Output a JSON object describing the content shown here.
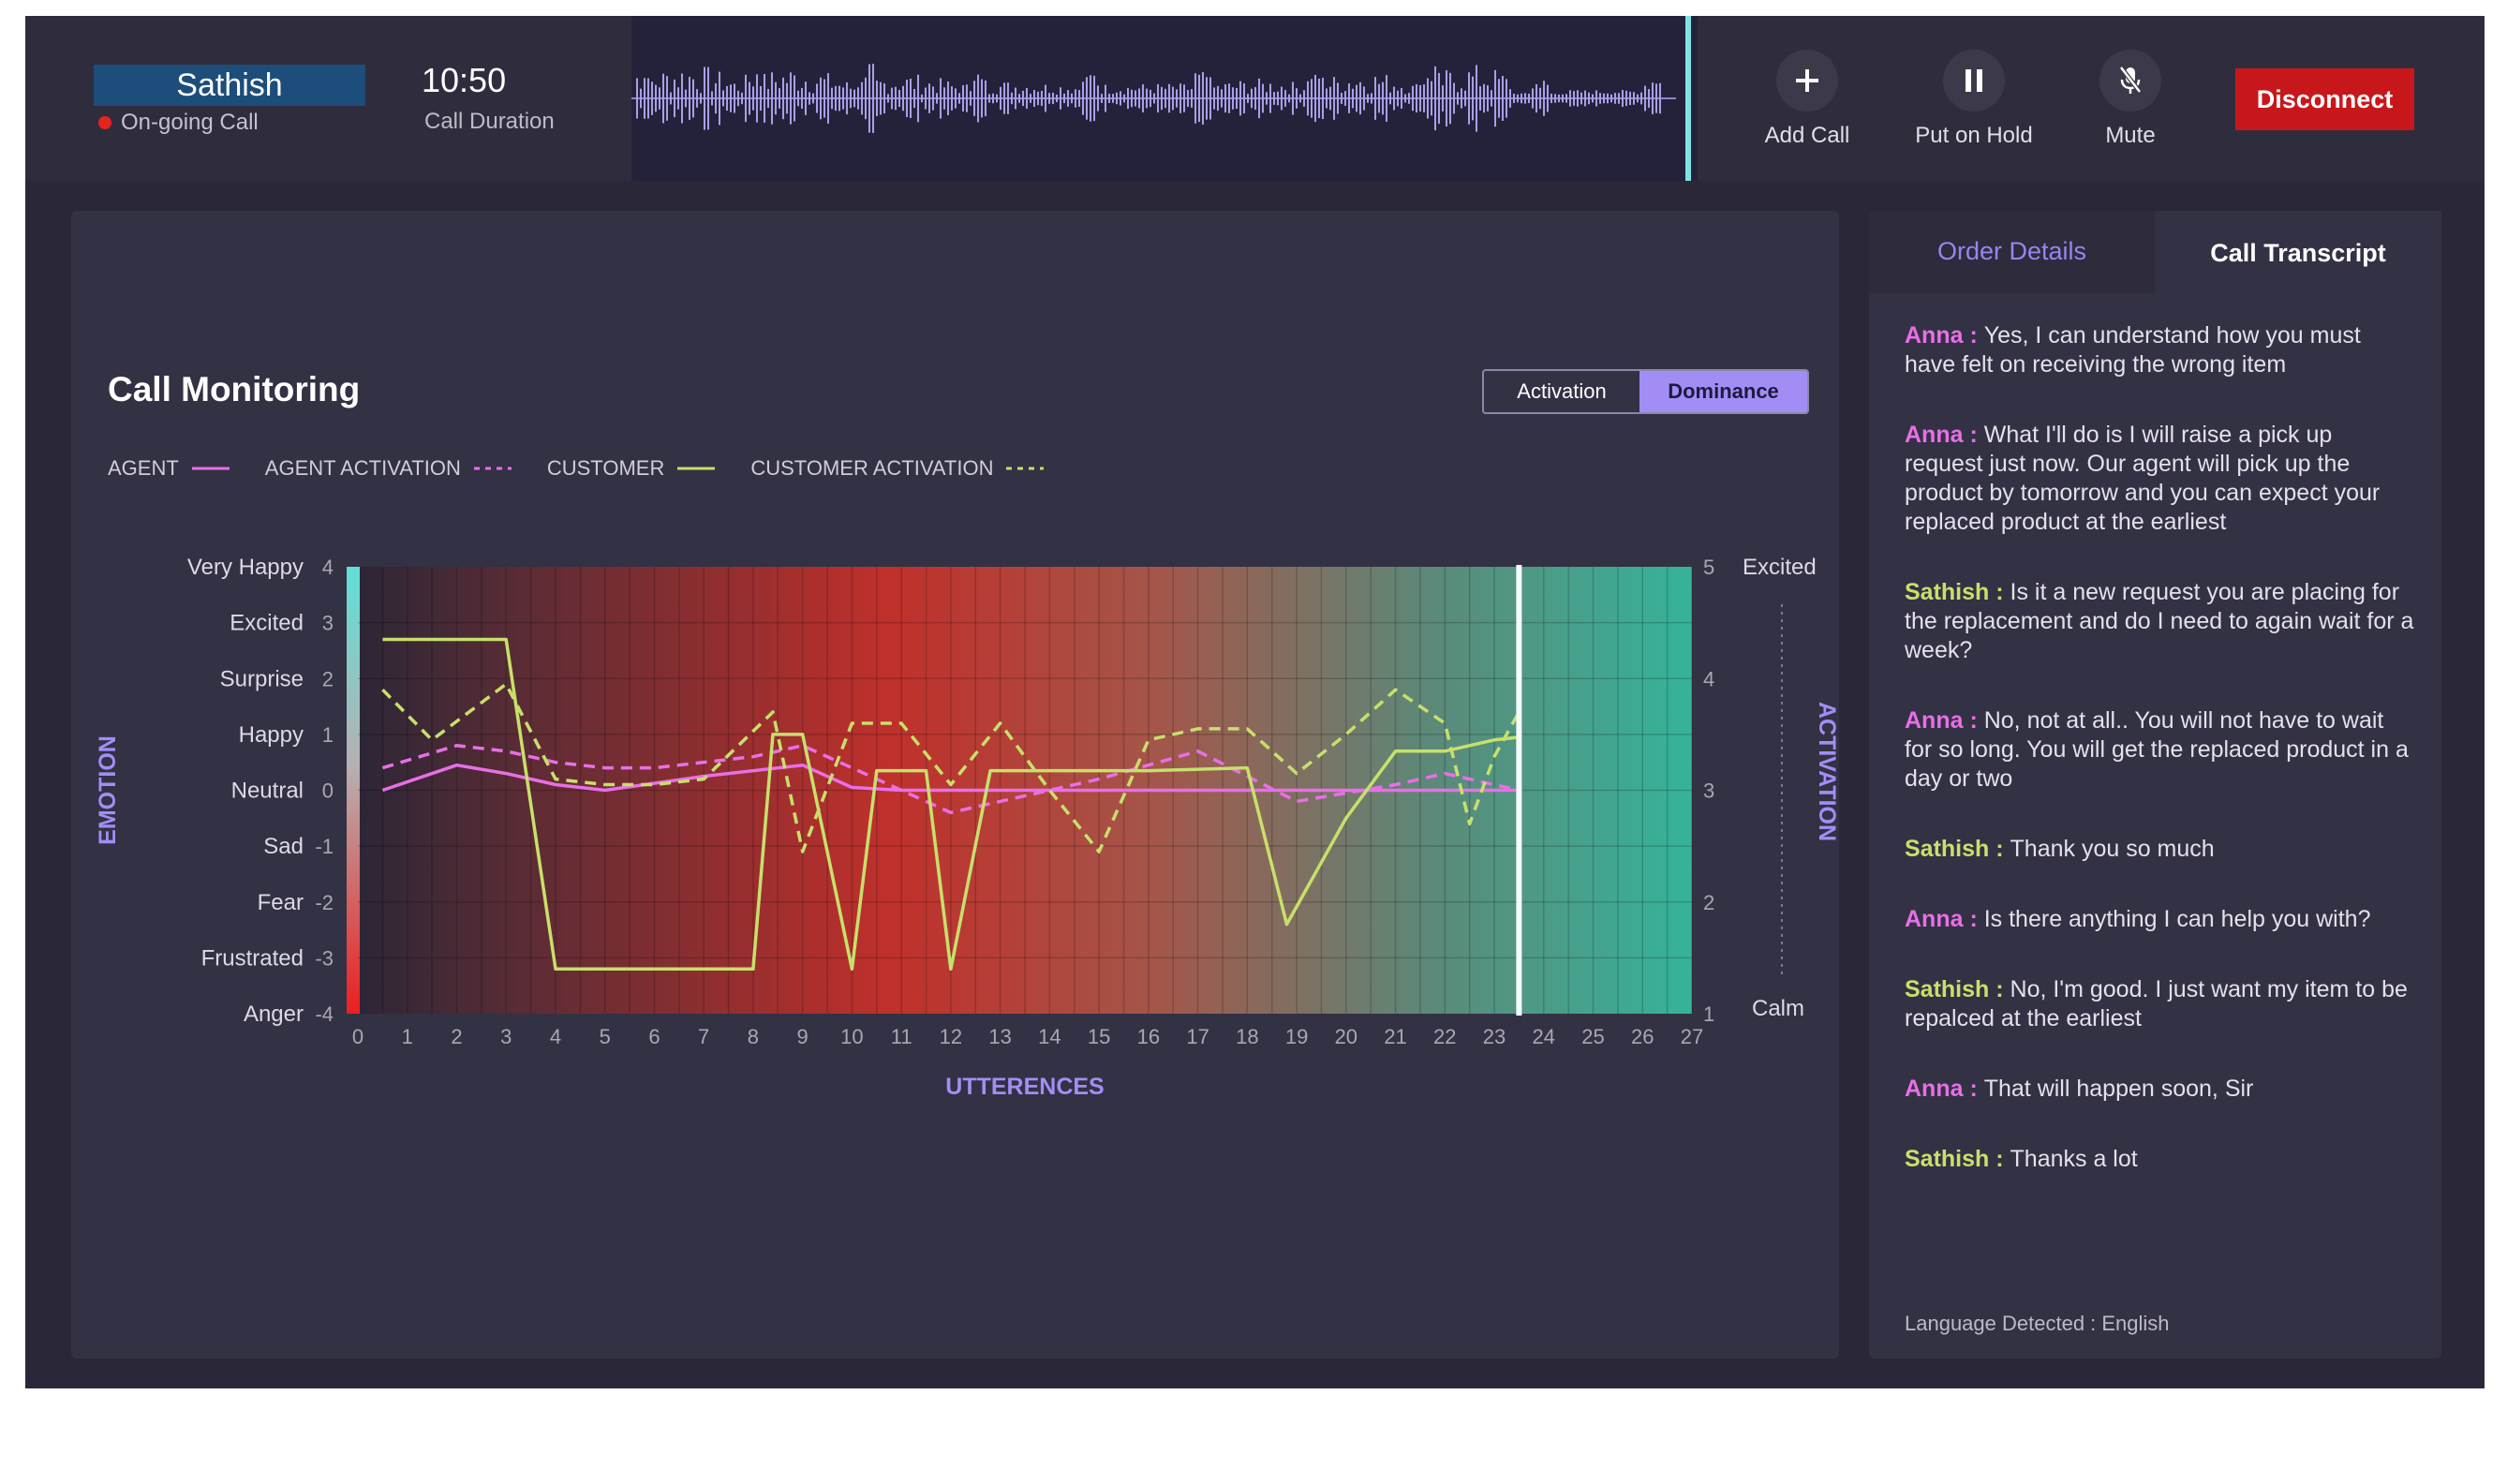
{
  "call": {
    "caller": "Sathish",
    "status": "On-going Call",
    "duration": "10:50",
    "duration_label": "Call Duration"
  },
  "controls": {
    "add_call": "Add Call",
    "hold": "Put on Hold",
    "mute": "Mute",
    "disconnect": "Disconnect"
  },
  "monitor": {
    "title": "Call Monitoring",
    "toggle": {
      "activation": "Activation",
      "dominance": "Dominance",
      "selected": "Dominance"
    },
    "legend": [
      "AGENT",
      "AGENT ACTIVATION",
      "CUSTOMER",
      "CUSTOMER ACTIVATION"
    ]
  },
  "chart_data": {
    "type": "line",
    "xlabel": "UTTERENCES",
    "ylabel": "EMOTION",
    "y2label": "ACTIVATION",
    "xlim": [
      0,
      27
    ],
    "ylim": [
      -4,
      4
    ],
    "y2lim": [
      1,
      5
    ],
    "x_ticks": [
      0,
      1,
      2,
      3,
      4,
      5,
      6,
      7,
      8,
      9,
      10,
      11,
      12,
      13,
      14,
      15,
      16,
      17,
      18,
      19,
      20,
      21,
      22,
      23,
      24,
      25,
      26,
      27
    ],
    "y_ticks": [
      {
        "value": 4,
        "label": "Very Happy"
      },
      {
        "value": 3,
        "label": "Excited"
      },
      {
        "value": 2,
        "label": "Surprise"
      },
      {
        "value": 1,
        "label": "Happy"
      },
      {
        "value": 0,
        "label": "Neutral"
      },
      {
        "value": -1,
        "label": "Sad"
      },
      {
        "value": -2,
        "label": "Fear"
      },
      {
        "value": -3,
        "label": "Frustrated"
      },
      {
        "value": -4,
        "label": "Anger"
      }
    ],
    "y2_ticks": [
      1,
      2,
      3,
      4,
      5
    ],
    "y2_top_label": "Excited",
    "y2_bottom_label": "Calm",
    "current_x": 23.5,
    "grid": true,
    "series": [
      {
        "name": "AGENT",
        "axis": "y",
        "color": "#e86fe6",
        "dash": false,
        "x": [
          0.5,
          2,
          3,
          4,
          5,
          7,
          9,
          10,
          11,
          12,
          13,
          15,
          17,
          19,
          21,
          23.5
        ],
        "y": [
          0,
          0.45,
          0.3,
          0.1,
          0,
          0.25,
          0.45,
          0.05,
          0,
          0,
          0,
          0,
          0,
          0,
          0,
          0
        ]
      },
      {
        "name": "AGENT ACTIVATION",
        "axis": "y2",
        "color": "#e86fe6",
        "dash": true,
        "x": [
          0.5,
          2,
          3,
          4,
          5,
          6,
          8,
          9,
          10,
          11,
          12,
          13,
          14,
          15,
          17,
          19,
          21,
          22,
          23.5
        ],
        "y": [
          3.2,
          3.4,
          3.35,
          3.25,
          3.2,
          3.2,
          3.3,
          3.4,
          3.2,
          3.0,
          2.8,
          2.9,
          3.0,
          3.1,
          3.35,
          2.9,
          3.05,
          3.15,
          3.0
        ]
      },
      {
        "name": "CUSTOMER",
        "axis": "y",
        "color": "#c7e06b",
        "dash": false,
        "x": [
          0.5,
          3,
          4,
          5,
          6,
          7,
          8,
          8.4,
          9,
          10,
          10.5,
          11,
          11.5,
          12,
          12.8,
          14,
          16,
          18,
          18.8,
          20,
          21,
          22,
          23,
          23.5
        ],
        "y": [
          2.7,
          2.7,
          -3.2,
          -3.2,
          -3.2,
          -3.2,
          -3.2,
          1,
          1,
          -3.2,
          0.35,
          0.35,
          0.35,
          -3.2,
          0.35,
          0.35,
          0.35,
          0.4,
          -2.4,
          -0.5,
          0.7,
          0.7,
          0.9,
          0.95
        ]
      },
      {
        "name": "CUSTOMER ACTIVATION",
        "axis": "y2",
        "color": "#c7e06b",
        "dash": true,
        "x": [
          0.5,
          1.5,
          3,
          4,
          5,
          6,
          7,
          8.4,
          9,
          10,
          11,
          12,
          13,
          14,
          15,
          16,
          17,
          18,
          19,
          20,
          21,
          22,
          22.5,
          23,
          23.5
        ],
        "y": [
          3.9,
          3.45,
          3.95,
          3.1,
          3.05,
          3.05,
          3.1,
          3.7,
          2.45,
          3.6,
          3.6,
          3.05,
          3.6,
          3.0,
          2.45,
          3.45,
          3.55,
          3.55,
          3.15,
          3.5,
          3.9,
          3.6,
          2.7,
          3.3,
          3.7
        ]
      }
    ]
  },
  "side": {
    "tab_order": "Order Details",
    "tab_transcript": "Call Transcript",
    "messages": [
      {
        "speaker": "Anna :",
        "text": "Yes, I can understand how you must have felt on receiving the wrong item"
      },
      {
        "speaker": "Anna :",
        "text": "What I'll do is I will raise a pick up request just now. Our agent will pick up the product by tomorrow and you can expect your replaced product at the earliest"
      },
      {
        "speaker": "Sathish :",
        "text": "Is it a new request you are placing for the replacement and do I need to again wait for a week?"
      },
      {
        "speaker": "Anna :",
        "text": "No, not at all.. You will not have to wait for so long. You will get the replaced product in a day or two"
      },
      {
        "speaker": "Sathish :",
        "text": "Thank you so much"
      },
      {
        "speaker": "Anna :",
        "text": "Is there anything I can help you with?"
      },
      {
        "speaker": "Sathish :",
        "text": "No, I'm good. I just want my item to be repalced at the earliest"
      },
      {
        "speaker": "Anna :",
        "text": "That will happen soon, Sir"
      },
      {
        "speaker": "Sathish :",
        "text": "Thanks a lot"
      }
    ],
    "language": "Language Detected : English"
  },
  "icons": {
    "add": "plus-icon",
    "hold": "pause-icon",
    "mute": "mic-off-icon",
    "status": "red-dot-icon"
  },
  "colors": {
    "agent": "#e86fe6",
    "customer": "#c7e06b",
    "accent": "#a38df5",
    "disconnect": "#c8171b",
    "negative": "#e8231f",
    "positive": "#3bb8a0"
  }
}
